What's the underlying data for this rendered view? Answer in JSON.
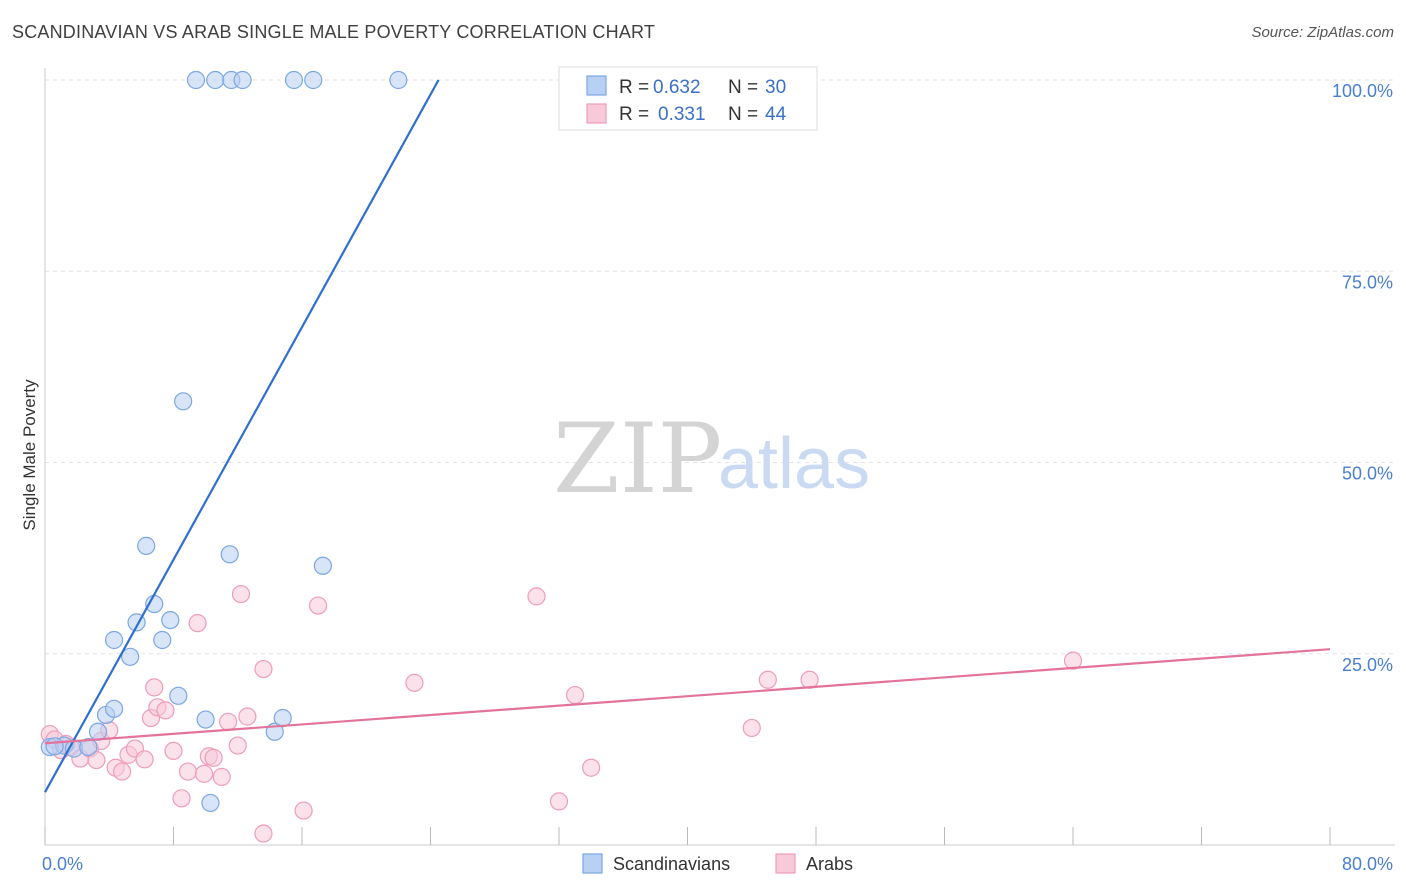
{
  "title": "SCANDINAVIAN VS ARAB SINGLE MALE POVERTY CORRELATION CHART",
  "source": "Source: ZipAtlas.com",
  "watermark": {
    "zip": "ZIP",
    "atlas": "atlas"
  },
  "chart_data": {
    "type": "scatter",
    "ylabel": "Single Male Poverty",
    "xlim": [
      0,
      80
    ],
    "ylim": [
      0,
      100
    ],
    "x_tick_labels": [
      "0.0%",
      "80.0%"
    ],
    "y_ticks": [
      {
        "value": 25,
        "label": "25.0%"
      },
      {
        "value": 50,
        "label": "50.0%"
      },
      {
        "value": 75,
        "label": "75.0%"
      },
      {
        "value": 100,
        "label": "100.0%"
      }
    ],
    "series": [
      {
        "name": "Scandinavians",
        "color": "#7aa7e3",
        "fill": "#b8d0f3",
        "line_color": "#2e6fcf",
        "R": "0.632",
        "N": "30",
        "trend": {
          "x1": 0,
          "y1": 6.9,
          "x2": 24.5,
          "y2": 100
        },
        "points": [
          [
            0.3,
            12.8
          ],
          [
            1.2,
            13.0
          ],
          [
            1.8,
            12.6
          ],
          [
            2.7,
            12.8
          ],
          [
            3.3,
            14.8
          ],
          [
            3.8,
            17.0
          ],
          [
            4.3,
            17.8
          ],
          [
            4.3,
            26.8
          ],
          [
            5.3,
            24.6
          ],
          [
            5.7,
            29.1
          ],
          [
            6.3,
            39.1
          ],
          [
            6.8,
            31.5
          ],
          [
            7.3,
            26.8
          ],
          [
            7.8,
            29.4
          ],
          [
            8.3,
            19.5
          ],
          [
            8.6,
            58.0
          ],
          [
            9.4,
            100
          ],
          [
            10.0,
            16.4
          ],
          [
            10.3,
            5.5
          ],
          [
            10.6,
            100
          ],
          [
            11.5,
            38.0
          ],
          [
            11.6,
            100
          ],
          [
            12.3,
            100
          ],
          [
            14.3,
            14.8
          ],
          [
            14.8,
            16.6
          ],
          [
            15.5,
            100
          ],
          [
            16.7,
            100
          ],
          [
            17.3,
            36.5
          ],
          [
            22.0,
            100
          ],
          [
            0.6,
            12.9
          ]
        ]
      },
      {
        "name": "Arabs",
        "color": "#ef9db8",
        "fill": "#f8c9d8",
        "line_color": "#e3739b",
        "R": "0.331",
        "N": "44",
        "trend": {
          "x1": 0,
          "y1": 13.3,
          "x2": 80,
          "y2": 25.6
        },
        "points": [
          [
            0.3,
            14.5
          ],
          [
            1.0,
            12.4
          ],
          [
            1.6,
            12.8
          ],
          [
            2.2,
            11.3
          ],
          [
            2.8,
            12.6
          ],
          [
            3.2,
            11.1
          ],
          [
            3.5,
            13.6
          ],
          [
            4.0,
            15.0
          ],
          [
            4.4,
            10.1
          ],
          [
            4.8,
            9.6
          ],
          [
            5.2,
            11.8
          ],
          [
            5.6,
            12.6
          ],
          [
            6.2,
            11.2
          ],
          [
            6.6,
            16.6
          ],
          [
            6.8,
            20.6
          ],
          [
            7.0,
            18.0
          ],
          [
            7.5,
            17.6
          ],
          [
            8.0,
            12.3
          ],
          [
            8.5,
            6.1
          ],
          [
            8.9,
            9.6
          ],
          [
            9.5,
            29.0
          ],
          [
            9.9,
            9.3
          ],
          [
            10.2,
            11.6
          ],
          [
            10.5,
            11.4
          ],
          [
            11.0,
            8.9
          ],
          [
            11.4,
            16.1
          ],
          [
            12.0,
            13.0
          ],
          [
            12.2,
            32.8
          ],
          [
            12.6,
            16.8
          ],
          [
            13.6,
            23.0
          ],
          [
            13.6,
            1.5
          ],
          [
            16.1,
            4.5
          ],
          [
            17.0,
            31.3
          ],
          [
            23.0,
            21.2
          ],
          [
            30.6,
            32.5
          ],
          [
            32.0,
            5.7
          ],
          [
            33.0,
            19.6
          ],
          [
            34.0,
            10.1
          ],
          [
            44.0,
            15.3
          ],
          [
            45.0,
            21.6
          ],
          [
            47.6,
            21.6
          ],
          [
            64.0,
            24.1
          ],
          [
            0.6,
            13.8
          ],
          [
            1.3,
            13.2
          ]
        ]
      }
    ]
  }
}
